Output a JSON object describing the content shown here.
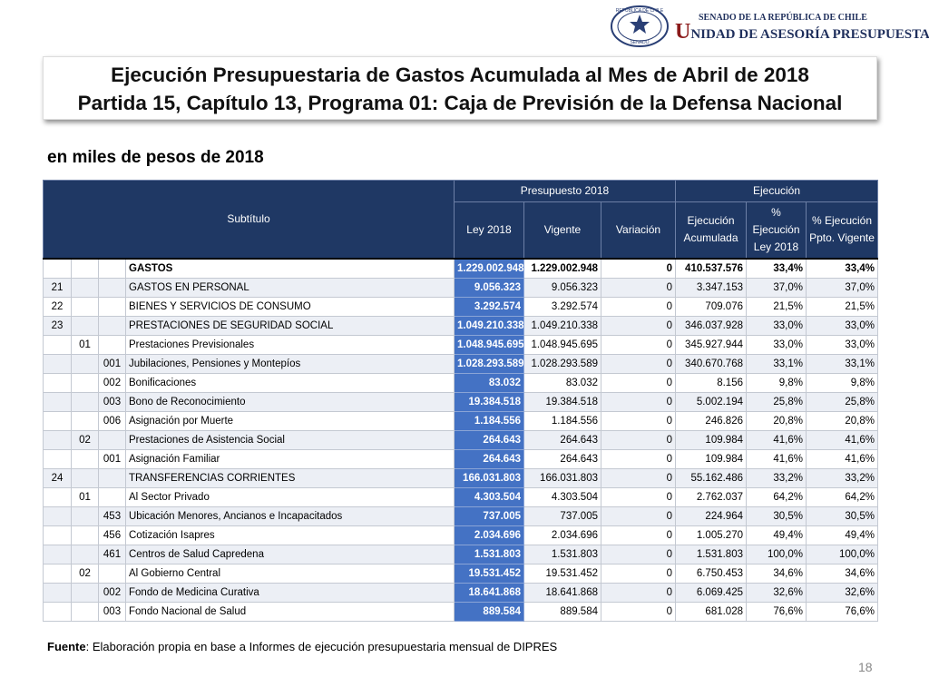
{
  "header": {
    "emblem_top": "REPÚBLICA DE CHILE",
    "emblem_bottom": "SENADO",
    "org_line1": "SENADO DE LA REPÚBLICA DE CHILE",
    "org_line2": "UNIDAD DE ASESORÍA PRESUPUESTARIA"
  },
  "title": {
    "line1": "Ejecución Presupuestaria de Gastos Acumulada al Mes de Abril de 2018",
    "line2": "Partida 15, Capítulo 13, Programa 01: Caja de Previsión de la Defensa Nacional"
  },
  "subtitle": "en miles de pesos de 2018",
  "table": {
    "header": {
      "subtitulo": "Subtítulo",
      "presupuesto": "Presupuesto 2018",
      "ejecucion": "Ejecución",
      "columns": [
        [
          "Ley 2018"
        ],
        [
          "Vigente"
        ],
        [
          "Variación"
        ],
        [
          "Ejecución",
          "Acumulada"
        ],
        [
          "% Ejecución",
          "Ley 2018"
        ],
        [
          "% Ejecución",
          "Ppto. Vigente"
        ]
      ]
    },
    "rows": [
      {
        "name": "GASTOS",
        "ley": "1.229.002.948",
        "vigente": "1.229.002.948",
        "variacion": "0",
        "ejecucion": "410.537.576",
        "pct_ley": "33,4%",
        "pct_vigente": "33,4%"
      },
      {
        "subtitulo": "21",
        "name": "GASTOS EN PERSONAL",
        "ley": "9.056.323",
        "vigente": "9.056.323",
        "variacion": "0",
        "ejecucion": "3.347.153",
        "pct_ley": "37,0%",
        "pct_vigente": "37,0%"
      },
      {
        "subtitulo": "22",
        "name": "BIENES Y SERVICIOS DE CONSUMO",
        "ley": "3.292.574",
        "vigente": "3.292.574",
        "variacion": "0",
        "ejecucion": "709.076",
        "pct_ley": "21,5%",
        "pct_vigente": "21,5%"
      },
      {
        "subtitulo": "23",
        "name": "PRESTACIONES DE SEGURIDAD SOCIAL",
        "ley": "1.049.210.338",
        "vigente": "1.049.210.338",
        "variacion": "0",
        "ejecucion": "346.037.928",
        "pct_ley": "33,0%",
        "pct_vigente": "33,0%"
      },
      {
        "item": "01",
        "name": "Prestaciones Previsionales",
        "ley": "1.048.945.695",
        "vigente": "1.048.945.695",
        "variacion": "0",
        "ejecucion": "345.927.944",
        "pct_ley": "33,0%",
        "pct_vigente": "33,0%"
      },
      {
        "asignacion": "001",
        "name": "Jubilaciones, Pensiones y Montepíos",
        "ley": "1.028.293.589",
        "vigente": "1.028.293.589",
        "variacion": "0",
        "ejecucion": "340.670.768",
        "pct_ley": "33,1%",
        "pct_vigente": "33,1%"
      },
      {
        "asignacion": "002",
        "name": "Bonificaciones",
        "ley": "83.032",
        "vigente": "83.032",
        "variacion": "0",
        "ejecucion": "8.156",
        "pct_ley": "9,8%",
        "pct_vigente": "9,8%"
      },
      {
        "asignacion": "003",
        "name": "Bono de Reconocimiento",
        "ley": "19.384.518",
        "vigente": "19.384.518",
        "variacion": "0",
        "ejecucion": "5.002.194",
        "pct_ley": "25,8%",
        "pct_vigente": "25,8%"
      },
      {
        "asignacion": "006",
        "name": "Asignación por Muerte",
        "ley": "1.184.556",
        "vigente": "1.184.556",
        "variacion": "0",
        "ejecucion": "246.826",
        "pct_ley": "20,8%",
        "pct_vigente": "20,8%"
      },
      {
        "item": "02",
        "name": "Prestaciones de Asistencia Social",
        "ley": "264.643",
        "vigente": "264.643",
        "variacion": "0",
        "ejecucion": "109.984",
        "pct_ley": "41,6%",
        "pct_vigente": "41,6%"
      },
      {
        "asignacion": "001",
        "name": "Asignación Familiar",
        "ley": "264.643",
        "vigente": "264.643",
        "variacion": "0",
        "ejecucion": "109.984",
        "pct_ley": "41,6%",
        "pct_vigente": "41,6%"
      },
      {
        "subtitulo": "24",
        "name": "TRANSFERENCIAS CORRIENTES",
        "ley": "166.031.803",
        "vigente": "166.031.803",
        "variacion": "0",
        "ejecucion": "55.162.486",
        "pct_ley": "33,2%",
        "pct_vigente": "33,2%"
      },
      {
        "item": "01",
        "name": "Al Sector Privado",
        "ley": "4.303.504",
        "vigente": "4.303.504",
        "variacion": "0",
        "ejecucion": "2.762.037",
        "pct_ley": "64,2%",
        "pct_vigente": "64,2%"
      },
      {
        "asignacion": "453",
        "name": "Ubicación Menores, Ancianos e Incapacitados",
        "ley": "737.005",
        "vigente": "737.005",
        "variacion": "0",
        "ejecucion": "224.964",
        "pct_ley": "30,5%",
        "pct_vigente": "30,5%"
      },
      {
        "asignacion": "456",
        "name": "Cotización Isapres",
        "ley": "2.034.696",
        "vigente": "2.034.696",
        "variacion": "0",
        "ejecucion": "1.005.270",
        "pct_ley": "49,4%",
        "pct_vigente": "49,4%"
      },
      {
        "asignacion": "461",
        "name": "Centros de Salud Capredena",
        "ley": "1.531.803",
        "vigente": "1.531.803",
        "variacion": "0",
        "ejecucion": "1.531.803",
        "pct_ley": "100,0%",
        "pct_vigente": "100,0%"
      },
      {
        "item": "02",
        "name": "Al Gobierno Central",
        "ley": "19.531.452",
        "vigente": "19.531.452",
        "variacion": "0",
        "ejecucion": "6.750.453",
        "pct_ley": "34,6%",
        "pct_vigente": "34,6%"
      },
      {
        "asignacion": "002",
        "name": "Fondo de Medicina Curativa",
        "ley": "18.641.868",
        "vigente": "18.641.868",
        "variacion": "0",
        "ejecucion": "6.069.425",
        "pct_ley": "32,6%",
        "pct_vigente": "32,6%"
      },
      {
        "asignacion": "003",
        "name": "Fondo Nacional de Salud",
        "ley": "889.584",
        "vigente": "889.584",
        "variacion": "0",
        "ejecucion": "681.028",
        "pct_ley": "76,6%",
        "pct_vigente": "76,6%"
      }
    ]
  },
  "footer": {
    "source_label": "Fuente",
    "source_text": ": Elaboración propia en base  a Informes de ejecución presupuestaria mensual de DIPRES",
    "page": "18"
  }
}
